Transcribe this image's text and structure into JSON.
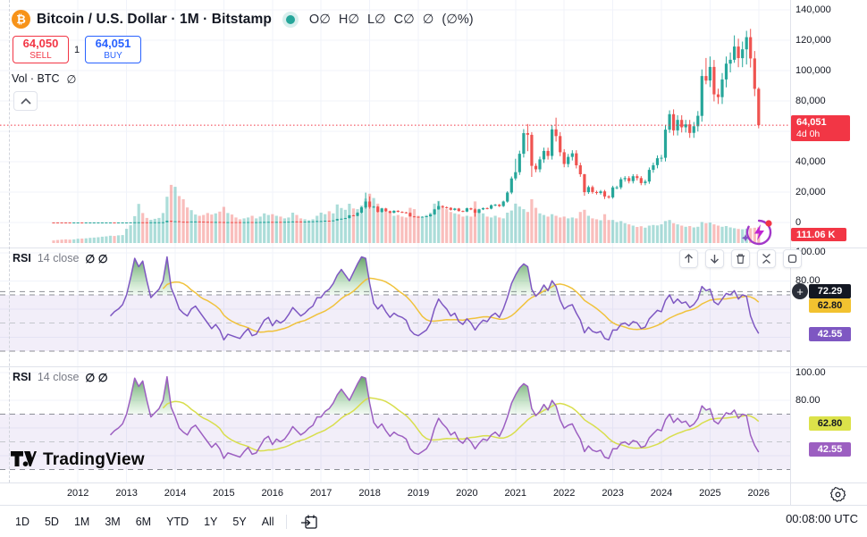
{
  "header": {
    "title": "Bitcoin / U.S. Dollar · 1M · Bitstamp",
    "ohlc": [
      "O∅",
      "H∅",
      "L∅",
      "C∅",
      "∅",
      "(∅%)"
    ],
    "sell": {
      "price": "64,050",
      "label": "SELL"
    },
    "buy": {
      "price": "64,051",
      "label": "BUY"
    },
    "spread": "1",
    "volume_legend": {
      "label": "Vol · BTC",
      "value": "∅"
    }
  },
  "price_scale": {
    "badge": {
      "price": "64,051",
      "countdown": "4d 0h"
    },
    "volume_badge": "111.06 K",
    "ticks": [
      {
        "v": 140000,
        "t": "140,000"
      },
      {
        "v": 120000,
        "t": "120,000"
      },
      {
        "v": 100000,
        "t": "100,000"
      },
      {
        "v": 80000,
        "t": "80,000"
      },
      {
        "v": 40000,
        "t": "40,000"
      },
      {
        "v": 20000,
        "t": "20,000"
      },
      {
        "v": 0,
        "t": "0"
      }
    ]
  },
  "rsi_panels": [
    {
      "legend": {
        "title": "RSI",
        "params": "14 close",
        "values": "∅ ∅"
      },
      "scale_ticks": [
        {
          "v": 100,
          "t": "100.00"
        },
        {
          "v": 80,
          "t": "80.00"
        }
      ],
      "badges": {
        "hover": "72.29",
        "ma": "62.80",
        "value": "42.55"
      },
      "colors": {
        "line": "#7E57C2",
        "ma": "#F0C23C",
        "badge_value": "#7E57C2"
      }
    },
    {
      "legend": {
        "title": "RSI",
        "params": "14 close",
        "values": "∅ ∅"
      },
      "scale_ticks": [
        {
          "v": 100,
          "t": "100.00"
        },
        {
          "v": 80,
          "t": "80.00"
        }
      ],
      "badges": {
        "ma": "62.80",
        "value": "42.55"
      },
      "colors": {
        "line": "#9C5FC1",
        "ma": "#D8DE4D",
        "badge_value": "#9C5FC1"
      }
    }
  ],
  "time_axis": {
    "years": [
      "2012",
      "2013",
      "2014",
      "2015",
      "2016",
      "2017",
      "2018",
      "2019",
      "2020",
      "2021",
      "2022",
      "2023",
      "2024",
      "2025",
      "2026"
    ]
  },
  "footer": {
    "ranges": [
      "1D",
      "5D",
      "1M",
      "3M",
      "6M",
      "YTD",
      "1Y",
      "5Y",
      "All"
    ],
    "clock": "00:08:00 UTC"
  },
  "branding": {
    "logo_text": "TradingView"
  },
  "colors": {
    "up": "#26A69A",
    "down": "#EF5350",
    "vol_up": "rgba(38,166,154,0.38)",
    "vol_down": "rgba(239,83,80,0.38)",
    "sell_red": "#F23645",
    "buy_blue": "#2962FF",
    "grid": "#F0F3FA",
    "band_line": "#8C8F96",
    "band_mid": "#C3C6CC",
    "band_fill": "rgba(126,87,194,0.10)",
    "green_fill": "#2E7D32",
    "last_price_line": "#F23645"
  },
  "chart_data": {
    "type": "candlestick",
    "symbol": "Bitcoin / U.S. Dollar",
    "interval": "1M",
    "exchange": "Bitstamp",
    "start_month": "2011-07",
    "first_open": 17,
    "last_price": 64051,
    "y_range": [
      0,
      140000
    ],
    "closes": [
      13,
      8.2,
      5.1,
      3.2,
      3,
      4.7,
      5.5,
      4.9,
      4.9,
      5,
      5.2,
      6.7,
      9.4,
      10.2,
      12.4,
      11.2,
      12.6,
      13.5,
      20.4,
      33.4,
      93,
      139,
      129,
      97,
      106,
      141,
      141,
      204,
      1130,
      732,
      806,
      550,
      454,
      446,
      627,
      635,
      589,
      478,
      386,
      338,
      378,
      320,
      217,
      254,
      244,
      236,
      230,
      263,
      284,
      230,
      236,
      314,
      377,
      430,
      368,
      437,
      416,
      448,
      531,
      673,
      624,
      575,
      609,
      700,
      745,
      963,
      970,
      1179,
      1071,
      1347,
      2286,
      2480,
      2875,
      4703,
      4360,
      6440,
      9916,
      13850,
      10221,
      10397,
      6938,
      9240,
      7494,
      6404,
      7735,
      7011,
      6626,
      6317,
      4017,
      3743,
      3437,
      3816,
      4105,
      5320,
      8574,
      10817,
      10085,
      9630,
      8308,
      9199,
      7569,
      7194,
      9350,
      8599,
      6439,
      8658,
      9461,
      9137,
      11356,
      11680,
      10784,
      13797,
      19713,
      29001,
      33141,
      45240,
      58800,
      57720,
      37298,
      35026,
      41553,
      47130,
      43824,
      61318,
      56882,
      46211,
      38483,
      43200,
      45528,
      37644,
      31784,
      19942,
      23303,
      20049,
      19424,
      20492,
      17168,
      16542,
      23125,
      23141,
      28465,
      29233,
      27216,
      30472,
      29232,
      25934,
      26962,
      34656,
      37712,
      42265,
      42580,
      61130,
      71280,
      60630,
      67540,
      62670,
      64610,
      58970,
      63340,
      70220,
      96440,
      93430,
      102400,
      84350,
      82550,
      94180,
      104600,
      107100,
      115800,
      108200,
      114000,
      122000,
      108000,
      88000,
      64051
    ],
    "wick_overrides": {
      "28": [
        1240,
        195
      ],
      "29": [
        1150,
        380
      ],
      "77": [
        19666,
        9000
      ],
      "78": [
        17176,
        9035
      ],
      "95": [
        13880,
        8500
      ],
      "104": [
        9200,
        3850
      ],
      "114": [
        41950,
        27734
      ],
      "117": [
        64850,
        46930
      ],
      "118": [
        59500,
        30000
      ],
      "124": [
        69000,
        53300
      ],
      "131": [
        31980,
        17600
      ],
      "136": [
        21480,
        15480
      ],
      "152": [
        73800,
        59000
      ],
      "161": [
        108300,
        91000
      ],
      "162": [
        109300,
        89200
      ],
      "168": [
        123200,
        105100
      ],
      "171": [
        126200,
        104000
      ],
      "174": [
        89000,
        62000
      ]
    },
    "volumes_kbtc": [
      3,
      4,
      5,
      6,
      5,
      6,
      8,
      9,
      10,
      12,
      13,
      15,
      18,
      20,
      24,
      22,
      26,
      28,
      90,
      140,
      320,
      680,
      400,
      280,
      240,
      260,
      280,
      400,
      950,
      1500,
      1400,
      980,
      850,
      560,
      480,
      360,
      330,
      350,
      400,
      360,
      390,
      440,
      580,
      400,
      360,
      290,
      250,
      270,
      290,
      330,
      270,
      310,
      390,
      350,
      370,
      330,
      310,
      270,
      290,
      410,
      350,
      270,
      250,
      230,
      250,
      330,
      410,
      370,
      450,
      390,
      660,
      545,
      490,
      685,
      530,
      510,
      625,
      880,
      1080,
      900,
      690,
      530,
      470,
      410,
      330,
      350,
      310,
      290,
      550,
      510,
      330,
      290,
      350,
      410,
      690,
      790,
      570,
      510,
      430,
      390,
      370,
      310,
      330,
      310,
      770,
      470,
      390,
      310,
      290,
      330,
      290,
      270,
      410,
      470,
      690,
      590,
      510,
      430,
      850,
      550,
      390,
      350,
      310,
      370,
      330,
      290,
      310,
      270,
      290,
      270,
      430,
      490,
      330,
      270,
      250,
      230,
      370,
      235,
      235,
      195,
      215,
      175,
      155,
      135,
      115,
      125,
      105,
      135,
      145,
      138,
      155,
      215,
      235,
      175,
      155,
      135,
      118,
      128,
      108,
      118,
      195,
      175,
      185,
      155,
      135,
      118,
      128,
      108,
      98,
      88,
      84,
      92,
      98,
      104,
      111.06
    ],
    "rsi": {
      "period": 14,
      "start_index": 14,
      "bands": [
        70,
        50,
        30
      ],
      "hover_level": 72.29,
      "values": [
        55,
        58,
        60,
        63,
        70,
        82,
        96,
        90,
        94,
        80,
        68,
        71,
        74,
        80,
        97,
        75,
        68,
        60,
        57,
        55,
        60,
        62,
        58,
        54,
        50,
        46,
        49,
        45,
        38,
        42,
        41,
        40,
        39,
        43,
        46,
        41,
        42,
        47,
        52,
        54,
        48,
        52,
        50,
        52,
        56,
        61,
        58,
        55,
        57,
        60,
        62,
        68,
        68,
        72,
        74,
        78,
        84,
        88,
        84,
        80,
        86,
        92,
        97,
        96,
        78,
        64,
        60,
        63,
        58,
        54,
        57,
        55,
        54,
        52,
        45,
        42,
        41,
        43,
        45,
        50,
        60,
        67,
        63,
        60,
        55,
        57,
        51,
        49,
        53,
        50,
        45,
        49,
        52,
        51,
        55,
        57,
        54,
        60,
        68,
        78,
        84,
        89,
        92,
        90,
        74,
        69,
        72,
        77,
        73,
        80,
        76,
        66,
        60,
        62,
        63,
        57,
        52,
        43,
        47,
        44,
        43,
        44,
        39,
        38,
        45,
        45,
        49,
        50,
        48,
        51,
        50,
        46,
        47,
        53,
        56,
        59,
        58,
        66,
        70,
        64,
        67,
        64,
        65,
        61,
        63,
        67,
        76,
        73,
        74,
        65,
        63,
        67,
        71,
        70,
        73,
        67,
        70,
        69,
        55,
        47.5,
        42.55
      ]
    }
  }
}
